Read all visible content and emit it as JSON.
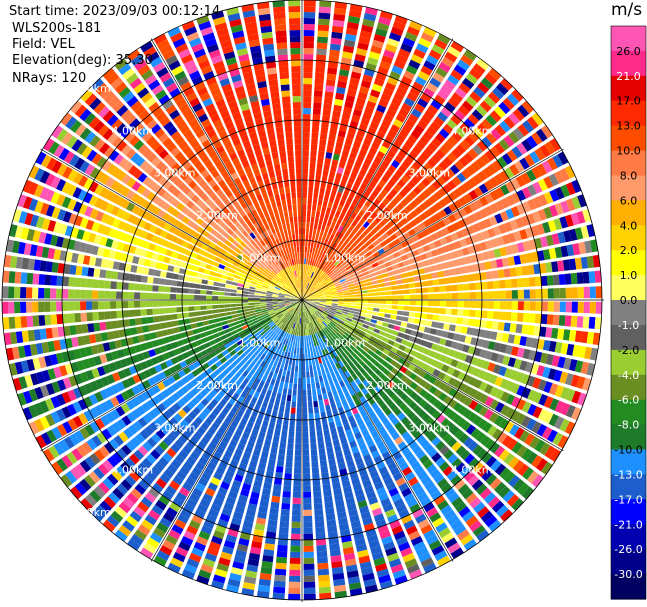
{
  "header": {
    "start_time": "Start time: 2023/09/03 00:12:14",
    "instrument": "WLS200s-181",
    "field": "Field: VEL",
    "elevation": "Elevation(deg): 35.30",
    "nrays": "NRays: 120"
  },
  "colorbar": {
    "unit": "m/s",
    "ticks": [
      "26.0",
      "21.0",
      "17.0",
      "13.0",
      "10.0",
      "8.0",
      "6.0",
      "4.0",
      "2.0",
      "1.0",
      "0.0",
      "-1.0",
      "-2.0",
      "-4.0",
      "-6.0",
      "-8.0",
      "-10.0",
      "-13.0",
      "-17.0",
      "-21.0",
      "-26.0",
      "-30.0"
    ],
    "colors": [
      "#ff55b4",
      "#ff2a8a",
      "#e60000",
      "#ff2a00",
      "#ff4d00",
      "#ff7a45",
      "#ff9a6a",
      "#ffb000",
      "#ffd200",
      "#ffff00",
      "#ffff60",
      "#808080",
      "#606060",
      "#9acd32",
      "#6b8e23",
      "#228b22",
      "#1e7b2a",
      "#1e90ff",
      "#1c5fcc",
      "#0000ff",
      "#0000b0",
      "#00008b",
      "#000060"
    ]
  },
  "chart_data": {
    "type": "polar-ppi",
    "field": "VEL",
    "unit": "m/s",
    "nrays": 120,
    "elevation_deg": 35.3,
    "range_rings_km": [
      "1.00km",
      "2.00km",
      "3.00km",
      "4.00km",
      "5.00km"
    ],
    "max_range_km": 5.0,
    "color_limits": [
      -30.0,
      30.0
    ],
    "velocity_pattern": {
      "north_sector": "positive (red/orange, ~10 to 17 m/s)",
      "south_sector": "negative (blue/green, ~-8 to -13 m/s near center)",
      "east_west_flanks": "near zero (yellow/gray)",
      "outer_gates": "noisy / random colors"
    }
  }
}
